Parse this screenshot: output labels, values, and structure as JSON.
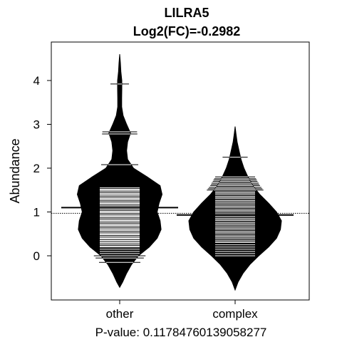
{
  "chart_data": {
    "type": "beanplot",
    "title": "LILRA5",
    "subtitle": "Log2(FC)=-0.2982",
    "ylabel": "Abundance",
    "xlabel": "P-value: 0.11784760139058277",
    "categories": [
      "other",
      "complex"
    ],
    "ylim": [
      -1.0,
      4.8
    ],
    "yticks": [
      0,
      1,
      2,
      3,
      4
    ],
    "overall_mean": 0.97,
    "grid": false,
    "legend": "none",
    "colors": {
      "bean": "#000000",
      "rug": "#ffffff",
      "background": "#ffffff"
    },
    "series": [
      {
        "category": "other",
        "mean": 1.1,
        "density": [
          [
            -0.72,
            0.0
          ],
          [
            -0.6,
            0.03
          ],
          [
            -0.4,
            0.07
          ],
          [
            -0.2,
            0.12
          ],
          [
            0.0,
            0.19
          ],
          [
            0.2,
            0.3
          ],
          [
            0.4,
            0.38
          ],
          [
            0.6,
            0.42
          ],
          [
            0.8,
            0.41
          ],
          [
            1.0,
            0.38
          ],
          [
            1.2,
            0.4
          ],
          [
            1.4,
            0.43
          ],
          [
            1.6,
            0.41
          ],
          [
            1.8,
            0.28
          ],
          [
            2.0,
            0.14
          ],
          [
            2.2,
            0.08
          ],
          [
            2.4,
            0.07
          ],
          [
            2.6,
            0.08
          ],
          [
            2.8,
            0.11
          ],
          [
            3.0,
            0.07
          ],
          [
            3.2,
            0.035
          ],
          [
            3.4,
            0.02
          ],
          [
            3.6,
            0.02
          ],
          [
            3.8,
            0.022
          ],
          [
            4.0,
            0.022
          ],
          [
            4.2,
            0.012
          ],
          [
            4.4,
            0.007
          ],
          [
            4.6,
            0.0
          ]
        ],
        "points": [
          -0.15,
          -0.05,
          0.0,
          0.05,
          0.1,
          0.15,
          0.2,
          0.22,
          0.25,
          0.28,
          0.3,
          0.33,
          0.35,
          0.38,
          0.4,
          0.42,
          0.45,
          0.48,
          0.5,
          0.52,
          0.55,
          0.58,
          0.6,
          0.62,
          0.65,
          0.68,
          0.7,
          0.72,
          0.75,
          0.78,
          0.8,
          0.82,
          0.85,
          0.88,
          0.9,
          0.92,
          0.95,
          0.98,
          1.0,
          1.02,
          1.05,
          1.08,
          1.1,
          1.12,
          1.15,
          1.18,
          1.2,
          1.22,
          1.25,
          1.28,
          1.3,
          1.32,
          1.35,
          1.38,
          1.4,
          1.42,
          1.45,
          1.48,
          1.5,
          1.52,
          1.55,
          2.08,
          2.78,
          2.83,
          3.92
        ]
      },
      {
        "category": "complex",
        "mean": 0.93,
        "density": [
          [
            -0.78,
            0.0
          ],
          [
            -0.6,
            0.03
          ],
          [
            -0.4,
            0.08
          ],
          [
            -0.2,
            0.15
          ],
          [
            0.0,
            0.24
          ],
          [
            0.2,
            0.34
          ],
          [
            0.4,
            0.42
          ],
          [
            0.6,
            0.46
          ],
          [
            0.8,
            0.47
          ],
          [
            1.0,
            0.42
          ],
          [
            1.2,
            0.34
          ],
          [
            1.4,
            0.25
          ],
          [
            1.6,
            0.18
          ],
          [
            1.8,
            0.13
          ],
          [
            2.0,
            0.09
          ],
          [
            2.2,
            0.06
          ],
          [
            2.4,
            0.04
          ],
          [
            2.6,
            0.02
          ],
          [
            2.8,
            0.008
          ],
          [
            2.95,
            0.0
          ]
        ],
        "points": [
          0.0,
          0.05,
          0.1,
          0.15,
          0.2,
          0.25,
          0.3,
          0.33,
          0.36,
          0.4,
          0.43,
          0.46,
          0.5,
          0.53,
          0.56,
          0.6,
          0.63,
          0.66,
          0.7,
          0.73,
          0.76,
          0.8,
          0.83,
          0.86,
          0.9,
          0.93,
          0.96,
          1.0,
          1.03,
          1.06,
          1.1,
          1.13,
          1.16,
          1.2,
          1.23,
          1.26,
          1.3,
          1.33,
          1.36,
          1.4,
          1.43,
          1.46,
          1.5,
          1.53,
          1.56,
          1.6,
          1.63,
          1.66,
          1.7,
          1.73,
          1.76,
          1.8,
          2.25
        ]
      }
    ]
  }
}
